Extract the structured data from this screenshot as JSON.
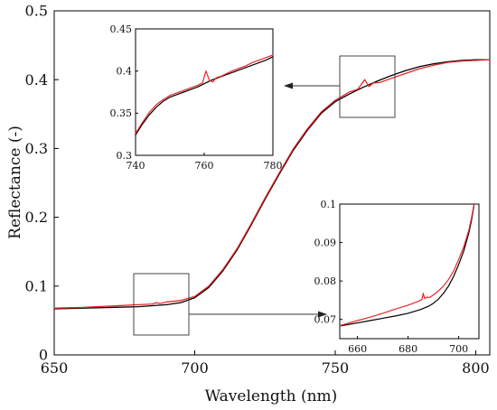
{
  "chart_data": [
    {
      "id": "main",
      "type": "line",
      "xlabel": "Wavelength (nm)",
      "ylabel": "Reflectance (-)",
      "xlim": [
        650,
        805
      ],
      "ylim": [
        0,
        0.5
      ],
      "xticks": [
        650,
        700,
        750,
        800
      ],
      "yticks": [
        0,
        0.1,
        0.2,
        0.3,
        0.4,
        0.5
      ],
      "ytick_labels": [
        "0",
        "0.1",
        "0.2",
        "0.3",
        "0.4",
        "0.5"
      ],
      "grid": false,
      "series": [
        {
          "color": "#000000",
          "x": [
            650,
            660,
            670,
            680,
            690,
            695,
            700,
            705,
            710,
            715,
            720,
            725,
            730,
            735,
            740,
            745,
            750,
            755,
            760,
            765,
            770,
            775,
            780,
            785,
            790,
            795,
            800,
            805
          ],
          "y": [
            0.067,
            0.068,
            0.069,
            0.07,
            0.073,
            0.076,
            0.083,
            0.098,
            0.122,
            0.152,
            0.188,
            0.226,
            0.262,
            0.297,
            0.326,
            0.351,
            0.368,
            0.379,
            0.389,
            0.398,
            0.406,
            0.413,
            0.419,
            0.423,
            0.426,
            0.428,
            0.429,
            0.429
          ]
        },
        {
          "color": "#e8262a",
          "x": [
            650,
            660,
            670,
            680,
            685,
            686.5,
            687,
            688,
            690,
            695,
            700,
            705,
            710,
            715,
            720,
            725,
            730,
            735,
            740,
            745,
            750,
            755,
            758,
            760.5,
            762,
            763.5,
            766,
            770,
            775,
            780,
            785,
            790,
            795,
            800,
            805
          ],
          "y": [
            0.068,
            0.069,
            0.071,
            0.073,
            0.074,
            0.076,
            0.075,
            0.075,
            0.077,
            0.079,
            0.085,
            0.1,
            0.124,
            0.154,
            0.19,
            0.228,
            0.264,
            0.299,
            0.328,
            0.353,
            0.37,
            0.382,
            0.386,
            0.4,
            0.39,
            0.395,
            0.396,
            0.402,
            0.409,
            0.416,
            0.421,
            0.425,
            0.427,
            0.428,
            0.429
          ]
        }
      ]
    },
    {
      "id": "inset_top",
      "type": "line",
      "xlim": [
        740,
        780
      ],
      "ylim": [
        0.3,
        0.45
      ],
      "xticks": [
        740,
        760,
        780
      ],
      "yticks": [
        0.3,
        0.35,
        0.4,
        0.45
      ],
      "ytick_labels": [
        "0.3",
        "0.35",
        "0.4",
        "0.45"
      ],
      "series": [
        {
          "color": "#000000",
          "x": [
            740,
            742,
            744,
            746,
            748,
            750,
            752,
            754,
            756,
            758,
            760,
            762,
            764,
            766,
            768,
            770,
            772,
            774,
            776,
            778,
            780
          ],
          "y": [
            0.324,
            0.337,
            0.348,
            0.357,
            0.364,
            0.369,
            0.372,
            0.375,
            0.378,
            0.381,
            0.385,
            0.389,
            0.392,
            0.395,
            0.398,
            0.401,
            0.404,
            0.407,
            0.41,
            0.413,
            0.417
          ]
        },
        {
          "color": "#e8262a",
          "x": [
            740,
            742,
            744,
            746,
            748,
            750,
            752,
            754,
            756,
            758,
            759.5,
            760.5,
            761.5,
            762.5,
            763.5,
            765,
            766,
            768,
            770,
            772,
            774,
            776,
            778,
            780
          ],
          "y": [
            0.326,
            0.339,
            0.351,
            0.36,
            0.366,
            0.371,
            0.374,
            0.377,
            0.38,
            0.383,
            0.386,
            0.4,
            0.389,
            0.387,
            0.392,
            0.394,
            0.396,
            0.4,
            0.403,
            0.406,
            0.41,
            0.413,
            0.416,
            0.419
          ]
        }
      ]
    },
    {
      "id": "inset_bottom",
      "type": "line",
      "xlim": [
        653,
        708
      ],
      "ylim": [
        0.065,
        0.1
      ],
      "xticks": [
        660,
        680,
        700
      ],
      "yticks": [
        0.07,
        0.08,
        0.09,
        0.1
      ],
      "ytick_labels": [
        "0.07",
        "0.08",
        "0.09",
        "0.1"
      ],
      "series": [
        {
          "color": "#000000",
          "x": [
            653,
            660,
            665,
            670,
            675,
            680,
            685,
            688,
            690,
            692,
            694,
            696,
            698,
            700,
            702,
            704,
            705,
            706
          ],
          "y": [
            0.0683,
            0.0691,
            0.0697,
            0.0703,
            0.0709,
            0.0716,
            0.0726,
            0.0734,
            0.0742,
            0.0753,
            0.0768,
            0.0787,
            0.0812,
            0.0843,
            0.0878,
            0.0925,
            0.0955,
            0.0995
          ]
        },
        {
          "color": "#e8262a",
          "x": [
            653,
            660,
            665,
            670,
            675,
            680,
            684,
            685.5,
            686,
            686.5,
            687.5,
            688.5,
            690,
            692,
            694,
            696,
            698,
            700,
            702,
            704,
            705,
            706
          ],
          "y": [
            0.0684,
            0.0697,
            0.0706,
            0.0716,
            0.0727,
            0.0737,
            0.0747,
            0.0752,
            0.0768,
            0.0755,
            0.0758,
            0.0757,
            0.0764,
            0.0774,
            0.0787,
            0.0804,
            0.0826,
            0.0856,
            0.0889,
            0.0932,
            0.0962,
            0.0998
          ]
        }
      ]
    }
  ]
}
